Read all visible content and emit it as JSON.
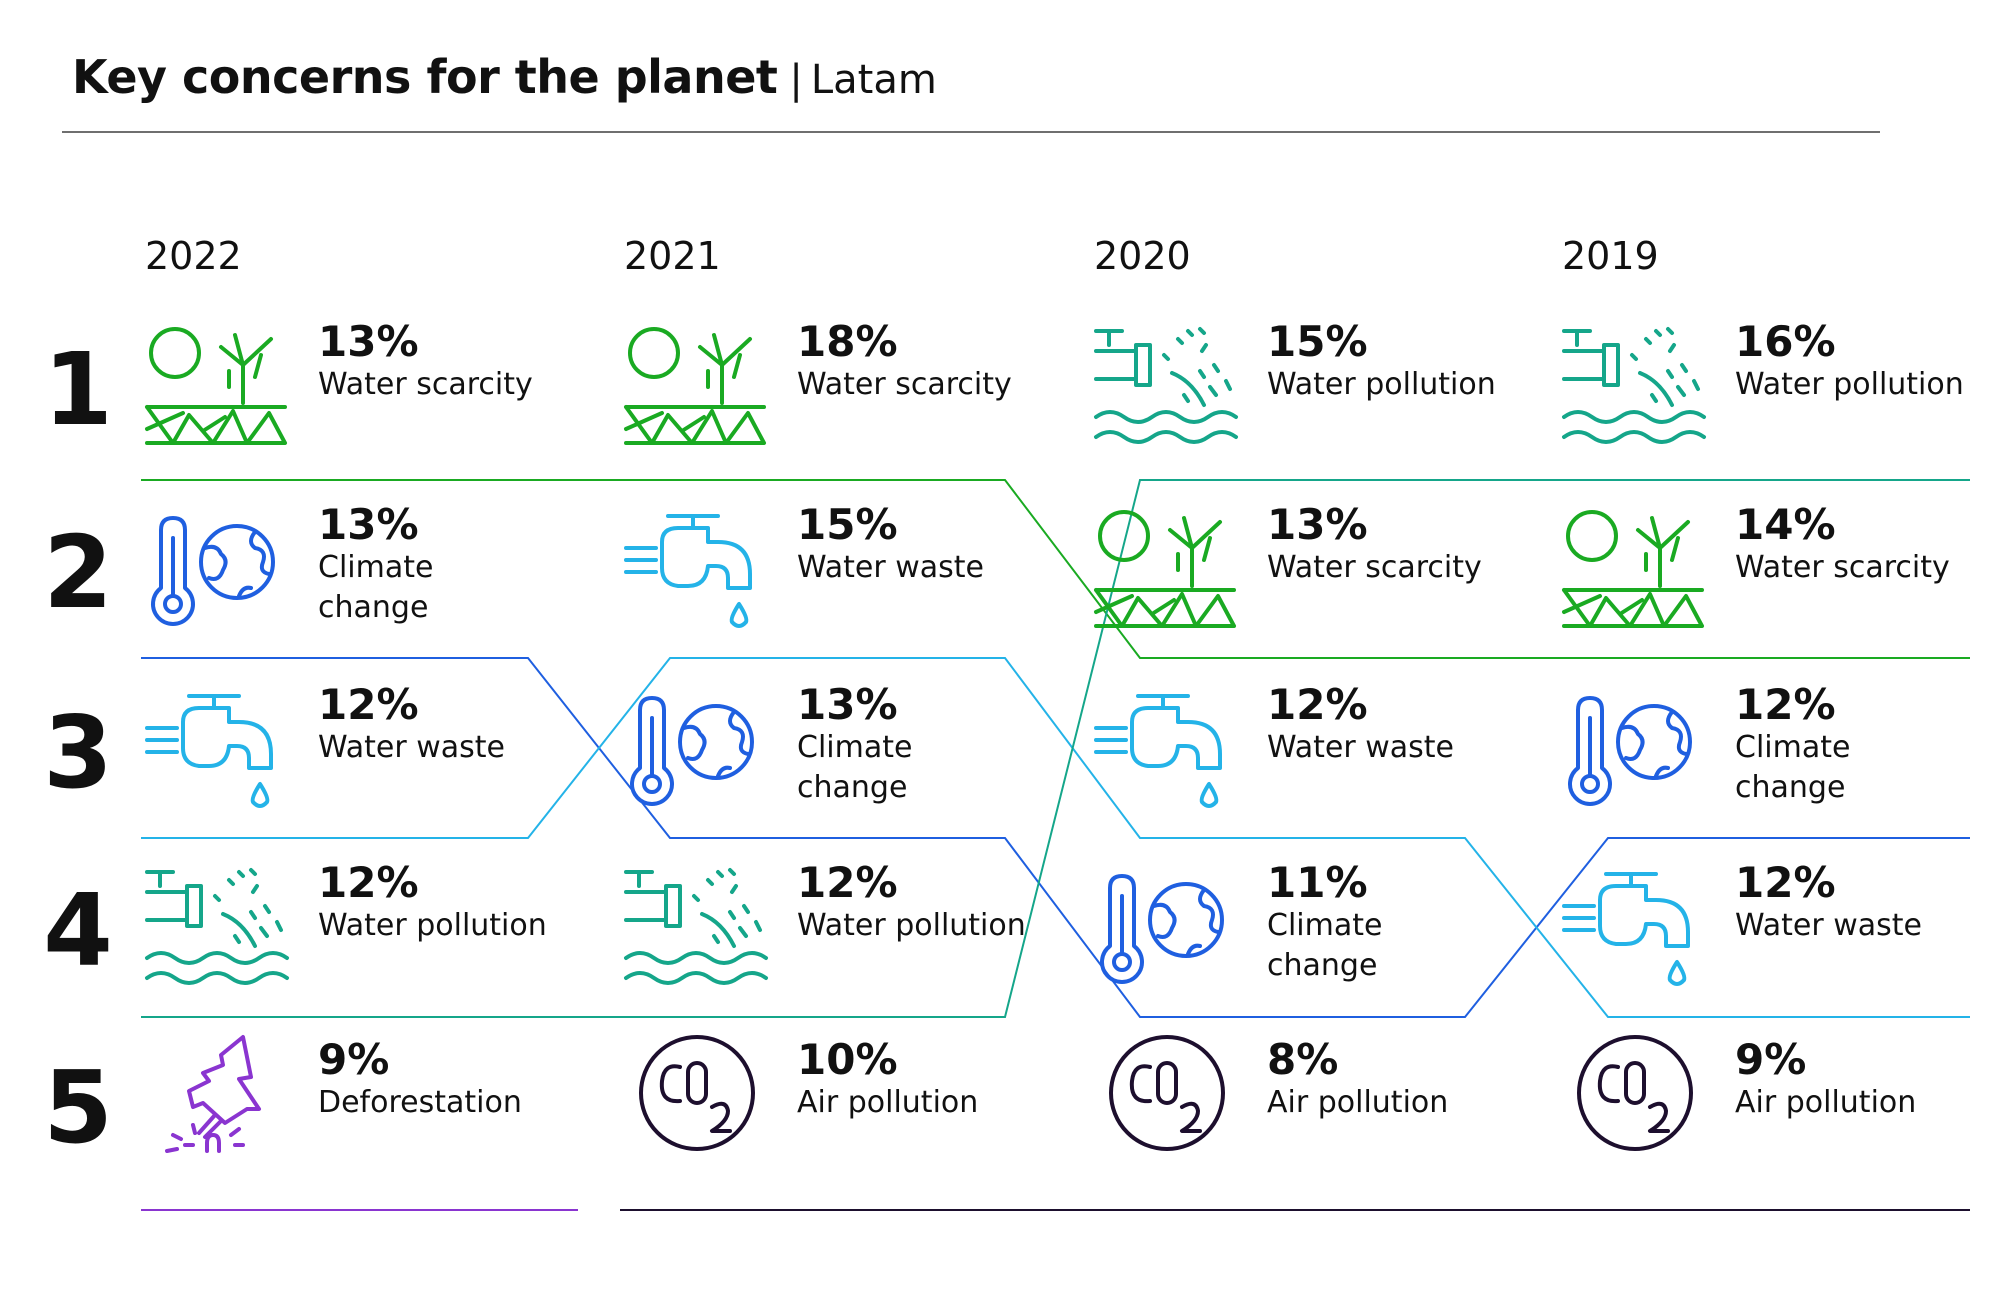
{
  "header": {
    "title": "Key concerns for the planet",
    "separator": "|",
    "subtitle": "Latam"
  },
  "colors": {
    "water_scarcity": "#1aaa22",
    "climate_change": "#1f5fe0",
    "water_waste": "#24b3e8",
    "water_pollution": "#15a68a",
    "deforestation": "#8a35d0",
    "air_pollution": "#1d0f2e"
  },
  "chart_data": {
    "type": "table",
    "title": "Key concerns for the planet",
    "subtitle": "Latam",
    "ranks": [
      "1",
      "2",
      "3",
      "4",
      "5"
    ],
    "years": [
      {
        "year": "2022",
        "items": [
          {
            "rank": 1,
            "value": 13,
            "pct": "13%",
            "label": "Water scarcity",
            "icon": "water-scarcity-icon",
            "key": "water_scarcity"
          },
          {
            "rank": 2,
            "value": 13,
            "pct": "13%",
            "label": "Climate change",
            "icon": "climate-change-icon",
            "key": "climate_change"
          },
          {
            "rank": 3,
            "value": 12,
            "pct": "12%",
            "label": "Water waste",
            "icon": "water-waste-icon",
            "key": "water_waste"
          },
          {
            "rank": 4,
            "value": 12,
            "pct": "12%",
            "label": "Water pollution",
            "icon": "water-pollution-icon",
            "key": "water_pollution"
          },
          {
            "rank": 5,
            "value": 9,
            "pct": "9%",
            "label": "Deforestation",
            "icon": "deforestation-icon",
            "key": "deforestation"
          }
        ]
      },
      {
        "year": "2021",
        "items": [
          {
            "rank": 1,
            "value": 18,
            "pct": "18%",
            "label": "Water scarcity",
            "icon": "water-scarcity-icon",
            "key": "water_scarcity"
          },
          {
            "rank": 2,
            "value": 15,
            "pct": "15%",
            "label": "Water waste",
            "icon": "water-waste-icon",
            "key": "water_waste"
          },
          {
            "rank": 3,
            "value": 13,
            "pct": "13%",
            "label": "Climate change",
            "icon": "climate-change-icon",
            "key": "climate_change"
          },
          {
            "rank": 4,
            "value": 12,
            "pct": "12%",
            "label": "Water pollution",
            "icon": "water-pollution-icon",
            "key": "water_pollution"
          },
          {
            "rank": 5,
            "value": 10,
            "pct": "10%",
            "label": "Air pollution",
            "icon": "co2-icon",
            "key": "air_pollution"
          }
        ]
      },
      {
        "year": "2020",
        "items": [
          {
            "rank": 1,
            "value": 15,
            "pct": "15%",
            "label": "Water pollution",
            "icon": "water-pollution-icon",
            "key": "water_pollution"
          },
          {
            "rank": 2,
            "value": 13,
            "pct": "13%",
            "label": "Water scarcity",
            "icon": "water-scarcity-icon",
            "key": "water_scarcity"
          },
          {
            "rank": 3,
            "value": 12,
            "pct": "12%",
            "label": "Water waste",
            "icon": "water-waste-icon",
            "key": "water_waste"
          },
          {
            "rank": 4,
            "value": 11,
            "pct": "11%",
            "label": "Climate change",
            "icon": "climate-change-icon",
            "key": "climate_change"
          },
          {
            "rank": 5,
            "value": 8,
            "pct": "8%",
            "label": "Air pollution",
            "icon": "co2-icon",
            "key": "air_pollution"
          }
        ]
      },
      {
        "year": "2019",
        "items": [
          {
            "rank": 1,
            "value": 16,
            "pct": "16%",
            "label": "Water pollution",
            "icon": "water-pollution-icon",
            "key": "water_pollution"
          },
          {
            "rank": 2,
            "value": 14,
            "pct": "14%",
            "label": "Water scarcity",
            "icon": "water-scarcity-icon",
            "key": "water_scarcity"
          },
          {
            "rank": 3,
            "value": 12,
            "pct": "12%",
            "label": "Climate change",
            "icon": "climate-change-icon",
            "key": "climate_change"
          },
          {
            "rank": 4,
            "value": 12,
            "pct": "12%",
            "label": "Water waste",
            "icon": "water-waste-icon",
            "key": "water_waste"
          },
          {
            "rank": 5,
            "value": 9,
            "pct": "9%",
            "label": "Air pollution",
            "icon": "co2-icon",
            "key": "air_pollution"
          }
        ]
      }
    ]
  }
}
